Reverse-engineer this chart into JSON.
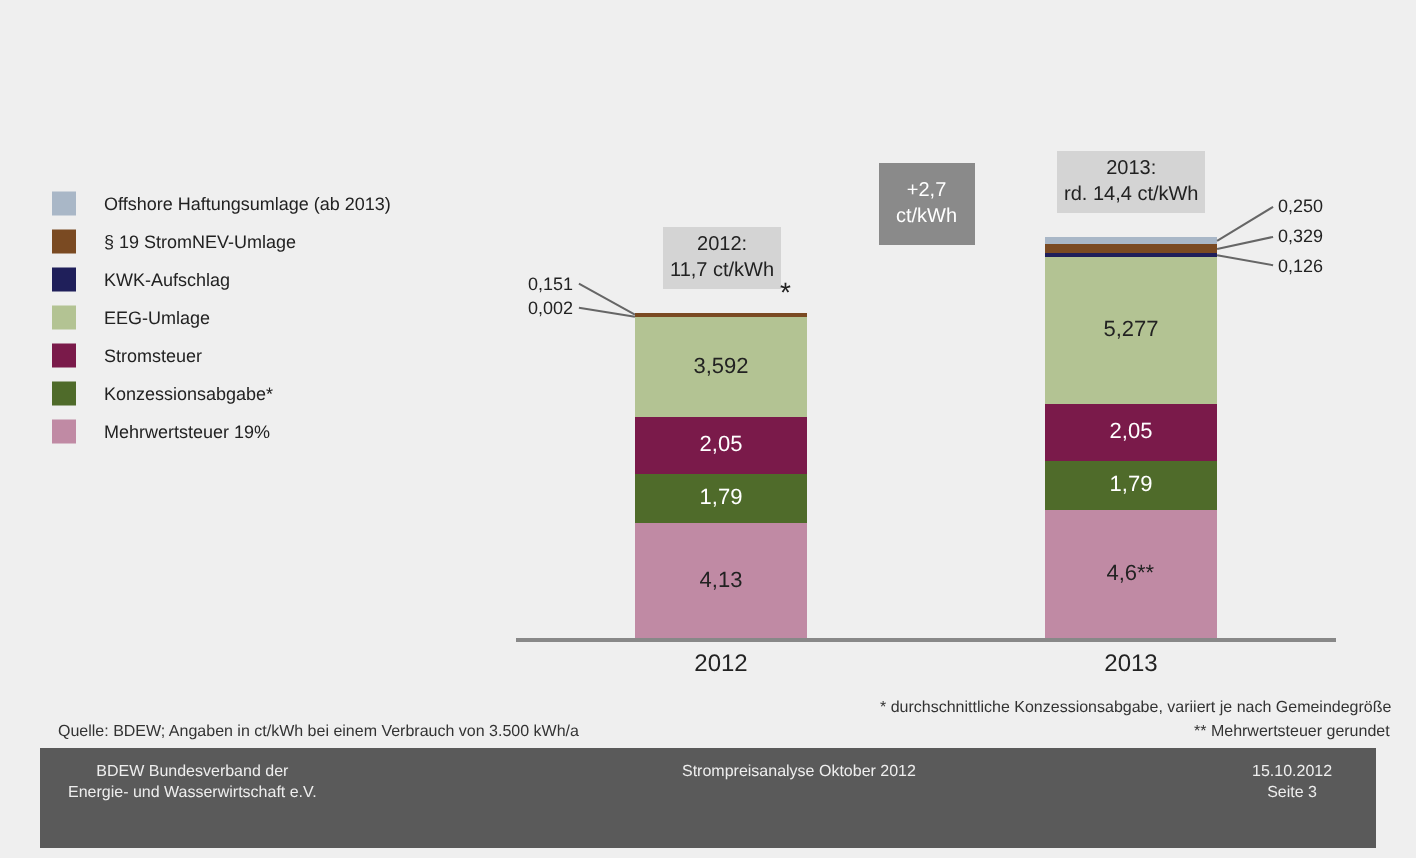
{
  "chart_data": {
    "type": "bar",
    "stacked": true,
    "categories": [
      "2012",
      "2013"
    ],
    "series": [
      {
        "name": "Mehrwertsteuer 19%",
        "color": "#c08aa4",
        "values": [
          4.13,
          4.6
        ],
        "value_labels": [
          "4,13",
          "4,6**"
        ]
      },
      {
        "name": "Konzessionsabgabe*",
        "color": "#4f6b2a",
        "values": [
          1.79,
          1.79
        ],
        "value_labels": [
          "1,79",
          "1,79"
        ]
      },
      {
        "name": "Stromsteuer",
        "color": "#7a1a4a",
        "values": [
          2.05,
          2.05
        ],
        "value_labels": [
          "2,05",
          "2,05"
        ]
      },
      {
        "name": "EEG-Umlage",
        "color": "#b3c393",
        "values": [
          3.592,
          5.277
        ],
        "value_labels": [
          "3,592",
          "5,277"
        ]
      },
      {
        "name": "KWK-Aufschlag",
        "color": "#1f1f5a",
        "values": [
          0.002,
          0.126
        ],
        "value_labels": [
          "0,002",
          "0,126"
        ]
      },
      {
        "name": "§ 19 StromNEV-Umlage",
        "color": "#7a4a22",
        "values": [
          0.151,
          0.329
        ],
        "value_labels": [
          "0,151",
          "0,329"
        ]
      },
      {
        "name": "Offshore Haftungsumlage (ab 2013)",
        "color": "#a9b7c7",
        "values": [
          null,
          0.25
        ],
        "value_labels": [
          null,
          "0,250"
        ]
      }
    ],
    "annotations": [
      {
        "text": "2012:\n11,7 ct/kWh",
        "x": "2012",
        "y": 11.7
      },
      {
        "text": "2013:\nrd. 14,4 ct/kWh",
        "x": "2013",
        "y": 14.4
      },
      "+2,7\nct/kWh",
      "*",
      "Quelle: BDEW; Angaben in ct/kWh bei einem Verbrauch von 3.500 kWh/a",
      "* durchschnittliche Konzessionsabgabe, variiert je nach Gemeindegröße",
      "** Mehrwertsteuer gerundet",
      "BDEW Bundesverband der\nEnergie- und Wasserwirtschaft e.V.",
      "Strompreisanalyse Oktober 2012",
      "15.10.2012\nSeite 3"
    ],
    "legend": "left",
    "tick_labels": "x"
  }
}
